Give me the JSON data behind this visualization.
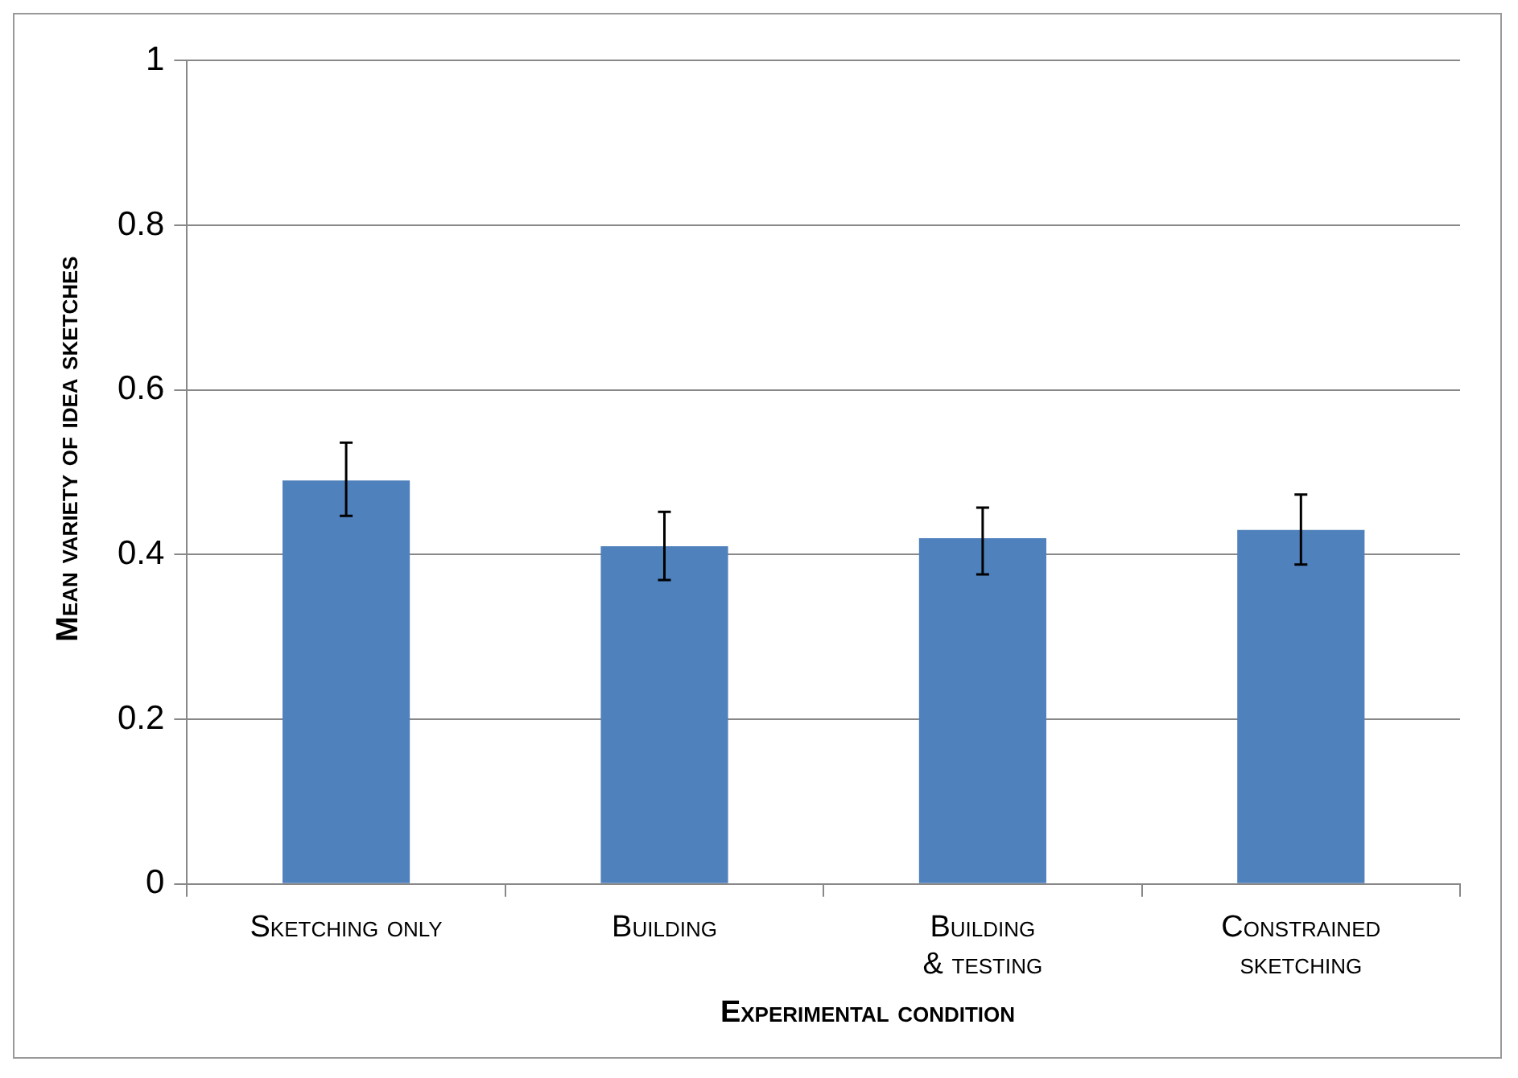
{
  "chart_data": {
    "type": "bar",
    "xlabel": "Experimental condition",
    "ylabel": "Mean variety of idea sketches",
    "categories": [
      "Sketching only",
      "Building",
      "Building & testing",
      "Constrained sketching"
    ],
    "values": [
      0.49,
      0.41,
      0.42,
      0.43
    ],
    "errors": [
      [
        0.447,
        0.536
      ],
      [
        0.369,
        0.452
      ],
      [
        0.376,
        0.457
      ],
      [
        0.388,
        0.473
      ]
    ],
    "color": "#4f81bd",
    "ylim": [
      0,
      1
    ],
    "yticks": [
      0,
      0.2,
      0.4,
      0.6,
      0.8,
      1
    ],
    "grid": "y",
    "legend": false
  }
}
